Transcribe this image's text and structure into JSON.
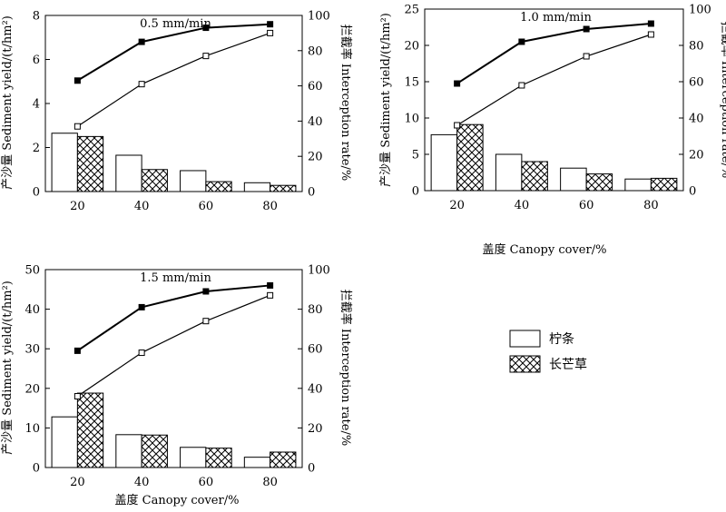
{
  "figure": {
    "legend": [
      {
        "label": "柠条",
        "pattern": "white"
      },
      {
        "label": "长芒草",
        "pattern": "crosshatch"
      }
    ],
    "y_left_label": "产沙量 Sediment yield/(t/hm²)",
    "y_right_label": "拦截率 Interception rate/%",
    "x_label": "盖度 Canopy cover/%"
  },
  "chart_data": [
    {
      "type": "bar+line",
      "title": "0.5 mm/min",
      "categories": [
        "20",
        "40",
        "60",
        "80"
      ],
      "ylim_left": [
        0,
        8
      ],
      "yticks_left": [
        0,
        2,
        4,
        6,
        8
      ],
      "ylim_right": [
        0,
        100
      ],
      "yticks_right": [
        0,
        20,
        40,
        60,
        80,
        100
      ],
      "series": [
        {
          "name": "柠条",
          "kind": "bar",
          "axis": "left",
          "values": [
            2.65,
            1.65,
            0.95,
            0.4
          ]
        },
        {
          "name": "长芒草",
          "kind": "bar",
          "axis": "left",
          "values": [
            2.5,
            1.0,
            0.45,
            0.28
          ]
        },
        {
          "name": "柠条",
          "kind": "line",
          "marker": "square-open",
          "axis": "right",
          "values": [
            37,
            61,
            77,
            90
          ]
        },
        {
          "name": "长芒草",
          "kind": "line",
          "marker": "square-filled",
          "axis": "right",
          "values": [
            63,
            85,
            93,
            95
          ]
        }
      ]
    },
    {
      "type": "bar+line",
      "title": "1.0 mm/min",
      "categories": [
        "20",
        "40",
        "60",
        "80"
      ],
      "ylim_left": [
        0,
        25
      ],
      "yticks_left": [
        0,
        5,
        10,
        15,
        20,
        25
      ],
      "ylim_right": [
        0,
        100
      ],
      "yticks_right": [
        0,
        20,
        40,
        60,
        80,
        100
      ],
      "series": [
        {
          "name": "柠条",
          "kind": "bar",
          "axis": "left",
          "values": [
            7.7,
            5.0,
            3.1,
            1.6
          ]
        },
        {
          "name": "长芒草",
          "kind": "bar",
          "axis": "left",
          "values": [
            9.1,
            4.0,
            2.3,
            1.7
          ]
        },
        {
          "name": "柠条",
          "kind": "line",
          "marker": "square-open",
          "axis": "right",
          "values": [
            36,
            58,
            74,
            86
          ]
        },
        {
          "name": "长芒草",
          "kind": "line",
          "marker": "square-filled",
          "axis": "right",
          "values": [
            59,
            82,
            89,
            92
          ]
        }
      ]
    },
    {
      "type": "bar+line",
      "title": "1.5 mm/min",
      "categories": [
        "20",
        "40",
        "60",
        "80"
      ],
      "ylim_left": [
        0,
        50
      ],
      "yticks_left": [
        0,
        10,
        20,
        30,
        40,
        50
      ],
      "ylim_right": [
        0,
        100
      ],
      "yticks_right": [
        0,
        20,
        40,
        60,
        80,
        100
      ],
      "series": [
        {
          "name": "柠条",
          "kind": "bar",
          "axis": "left",
          "values": [
            12.8,
            8.3,
            5.1,
            2.6
          ]
        },
        {
          "name": "长芒草",
          "kind": "bar",
          "axis": "left",
          "values": [
            18.8,
            8.2,
            4.9,
            3.9
          ]
        },
        {
          "name": "柠条",
          "kind": "line",
          "marker": "square-open",
          "axis": "right",
          "values": [
            36,
            58,
            74,
            87
          ]
        },
        {
          "name": "长芒草",
          "kind": "line",
          "marker": "square-filled",
          "axis": "right",
          "values": [
            59,
            81,
            89,
            92
          ]
        }
      ]
    }
  ]
}
